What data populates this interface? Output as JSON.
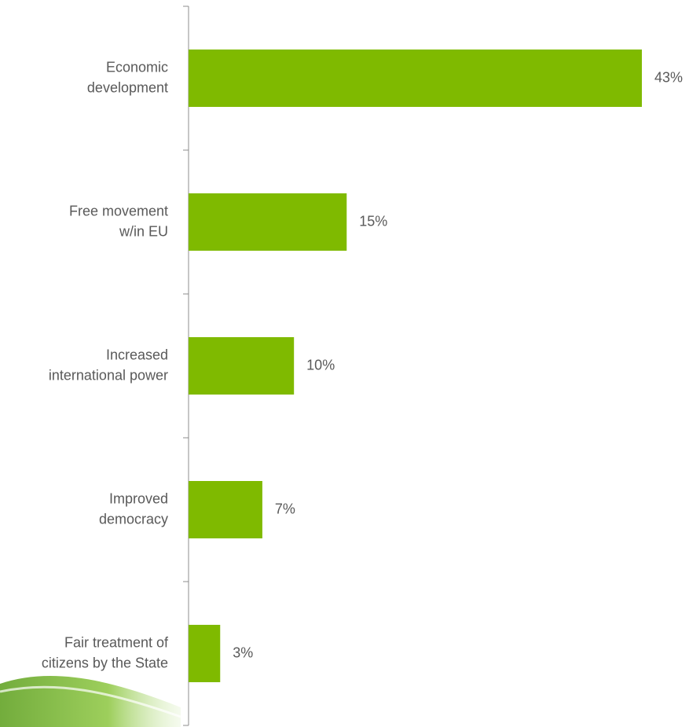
{
  "chart_data": {
    "type": "bar",
    "orientation": "horizontal",
    "categories": [
      [
        "Economic",
        "development"
      ],
      [
        "Free movement",
        "w/in EU"
      ],
      [
        "Increased",
        "international power"
      ],
      [
        "Improved",
        "democracy"
      ],
      [
        "Fair treatment of",
        "citizens by the State"
      ]
    ],
    "values": [
      43,
      15,
      10,
      7,
      3
    ],
    "value_labels": [
      "43%",
      "15%",
      "10%",
      "7%",
      "3%"
    ],
    "color": "#7fba00"
  }
}
